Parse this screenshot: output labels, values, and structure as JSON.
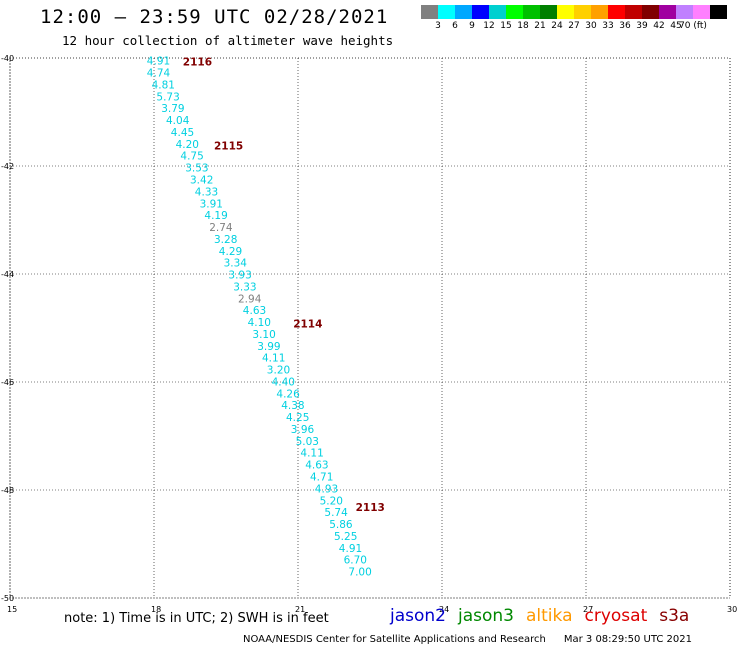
{
  "header": {
    "title": "12:00 – 23:59 UTC 02/28/2021",
    "subtitle": "12 hour collection of altimeter wave heights"
  },
  "legend": {
    "colors": [
      "#808080",
      "#00ffff",
      "#00a8ff",
      "#0000ff",
      "#00d0d0",
      "#00ff00",
      "#00c000",
      "#008000",
      "#ffff00",
      "#ffd000",
      "#ffa000",
      "#ff0000",
      "#c00000",
      "#800000",
      "#a000a0",
      "#c080ff",
      "#ff80ff",
      "#000000"
    ],
    "ticks": [
      "3",
      "6",
      "9",
      "12",
      "15",
      "18",
      "21",
      "24",
      "27",
      "30",
      "33",
      "36",
      "39",
      "42",
      "45",
      "70 (ft)"
    ]
  },
  "footer": {
    "note": "note: 1) Time is in UTC; 2) SWH is in feet",
    "satellites": [
      {
        "name": "jason2",
        "color": "#0000cc"
      },
      {
        "name": "jason3",
        "color": "#008800"
      },
      {
        "name": "altika",
        "color": "#ff9900"
      },
      {
        "name": "cryosat",
        "color": "#dd0000"
      },
      {
        "name": "s3a",
        "color": "#880000"
      }
    ],
    "credit": "NOAA/NESDIS Center for Satellite Applications and Research",
    "timestamp": "Mar  3 08:29:50 UTC 2021"
  },
  "chart_data": {
    "type": "scatter",
    "title": "12:00 – 23:59 UTC 02/28/2021",
    "subtitle": "12 hour collection of altimeter wave heights",
    "xlabel": "",
    "ylabel": "",
    "xlim": [
      15,
      30
    ],
    "ylim": [
      -50,
      -40
    ],
    "xticks": [
      "15",
      "18",
      "21",
      "24",
      "27",
      "30"
    ],
    "yticks": [
      "-40",
      "-42",
      "-44",
      "-46",
      "-48",
      "-50"
    ],
    "grid": true,
    "units": "ft",
    "points": [
      {
        "lon": 17.85,
        "lat": -40.05,
        "swh": "4.91",
        "color": "#00d0e0"
      },
      {
        "lon": 17.85,
        "lat": -40.27,
        "swh": "4.74",
        "color": "#00d0e0"
      },
      {
        "lon": 17.95,
        "lat": -40.49,
        "swh": "4.81",
        "color": "#00d0e0"
      },
      {
        "lon": 18.05,
        "lat": -40.71,
        "swh": "5.73",
        "color": "#00d0e0"
      },
      {
        "lon": 18.15,
        "lat": -40.93,
        "swh": "3.79",
        "color": "#00d0e0"
      },
      {
        "lon": 18.25,
        "lat": -41.15,
        "swh": "4.04",
        "color": "#00d0e0"
      },
      {
        "lon": 18.35,
        "lat": -41.37,
        "swh": "4.45",
        "color": "#00d0e0"
      },
      {
        "lon": 18.45,
        "lat": -41.59,
        "swh": "4.20",
        "color": "#00d0e0"
      },
      {
        "lon": 18.55,
        "lat": -41.81,
        "swh": "4.75",
        "color": "#00d0e0"
      },
      {
        "lon": 18.65,
        "lat": -42.03,
        "swh": "3.53",
        "color": "#00d0e0"
      },
      {
        "lon": 18.75,
        "lat": -42.25,
        "swh": "3.42",
        "color": "#00d0e0"
      },
      {
        "lon": 18.85,
        "lat": -42.47,
        "swh": "4.33",
        "color": "#00d0e0"
      },
      {
        "lon": 18.95,
        "lat": -42.69,
        "swh": "3.91",
        "color": "#00d0e0"
      },
      {
        "lon": 19.05,
        "lat": -42.91,
        "swh": "4.19",
        "color": "#00d0e0"
      },
      {
        "lon": 19.15,
        "lat": -43.13,
        "swh": "2.74",
        "color": "#808080"
      },
      {
        "lon": 19.25,
        "lat": -43.35,
        "swh": "3.28",
        "color": "#00d0e0"
      },
      {
        "lon": 19.35,
        "lat": -43.57,
        "swh": "4.29",
        "color": "#00d0e0"
      },
      {
        "lon": 19.45,
        "lat": -43.79,
        "swh": "3.34",
        "color": "#00d0e0"
      },
      {
        "lon": 19.55,
        "lat": -44.01,
        "swh": "3.93",
        "color": "#00d0e0"
      },
      {
        "lon": 19.65,
        "lat": -44.23,
        "swh": "3.33",
        "color": "#00d0e0"
      },
      {
        "lon": 19.75,
        "lat": -44.45,
        "swh": "2.94",
        "color": "#808080"
      },
      {
        "lon": 19.85,
        "lat": -44.67,
        "swh": "4.63",
        "color": "#00d0e0"
      },
      {
        "lon": 19.95,
        "lat": -44.89,
        "swh": "4.10",
        "color": "#00d0e0"
      },
      {
        "lon": 20.05,
        "lat": -45.11,
        "swh": "3.10",
        "color": "#00d0e0"
      },
      {
        "lon": 20.15,
        "lat": -45.33,
        "swh": "3.99",
        "color": "#00d0e0"
      },
      {
        "lon": 20.25,
        "lat": -45.55,
        "swh": "4.11",
        "color": "#00d0e0"
      },
      {
        "lon": 20.35,
        "lat": -45.77,
        "swh": "3.20",
        "color": "#00d0e0"
      },
      {
        "lon": 20.45,
        "lat": -45.99,
        "swh": "4.40",
        "color": "#00d0e0"
      },
      {
        "lon": 20.55,
        "lat": -46.21,
        "swh": "4.26",
        "color": "#00d0e0"
      },
      {
        "lon": 20.65,
        "lat": -46.43,
        "swh": "4.38",
        "color": "#00d0e0"
      },
      {
        "lon": 20.75,
        "lat": -46.65,
        "swh": "4.25",
        "color": "#00d0e0"
      },
      {
        "lon": 20.85,
        "lat": -46.87,
        "swh": "3.96",
        "color": "#00d0e0"
      },
      {
        "lon": 20.95,
        "lat": -47.09,
        "swh": "5.03",
        "color": "#00d0e0"
      },
      {
        "lon": 21.05,
        "lat": -47.31,
        "swh": "4.11",
        "color": "#00d0e0"
      },
      {
        "lon": 21.15,
        "lat": -47.53,
        "swh": "4.63",
        "color": "#00d0e0"
      },
      {
        "lon": 21.25,
        "lat": -47.75,
        "swh": "4.71",
        "color": "#00d0e0"
      },
      {
        "lon": 21.35,
        "lat": -47.97,
        "swh": "4.93",
        "color": "#00d0e0"
      },
      {
        "lon": 21.45,
        "lat": -48.19,
        "swh": "5.20",
        "color": "#00d0e0"
      },
      {
        "lon": 21.55,
        "lat": -48.41,
        "swh": "5.74",
        "color": "#00d0e0"
      },
      {
        "lon": 21.65,
        "lat": -48.63,
        "swh": "5.86",
        "color": "#00d0e0"
      },
      {
        "lon": 21.75,
        "lat": -48.85,
        "swh": "5.25",
        "color": "#00d0e0"
      },
      {
        "lon": 21.85,
        "lat": -49.07,
        "swh": "4.91",
        "color": "#00d0e0"
      },
      {
        "lon": 21.95,
        "lat": -49.29,
        "swh": "6.70",
        "color": "#00d0e0"
      },
      {
        "lon": 22.05,
        "lat": -49.51,
        "swh": "7.00",
        "color": "#00d0e0"
      }
    ],
    "annotations": [
      {
        "text": "2116",
        "lon": 18.6,
        "lat": -40.05,
        "color": "#800000"
      },
      {
        "text": "2115",
        "lon": 19.25,
        "lat": -41.6,
        "color": "#800000"
      },
      {
        "text": "2114",
        "lon": 20.9,
        "lat": -44.9,
        "color": "#800000"
      },
      {
        "text": "2113",
        "lon": 22.2,
        "lat": -48.3,
        "color": "#800000"
      }
    ]
  }
}
